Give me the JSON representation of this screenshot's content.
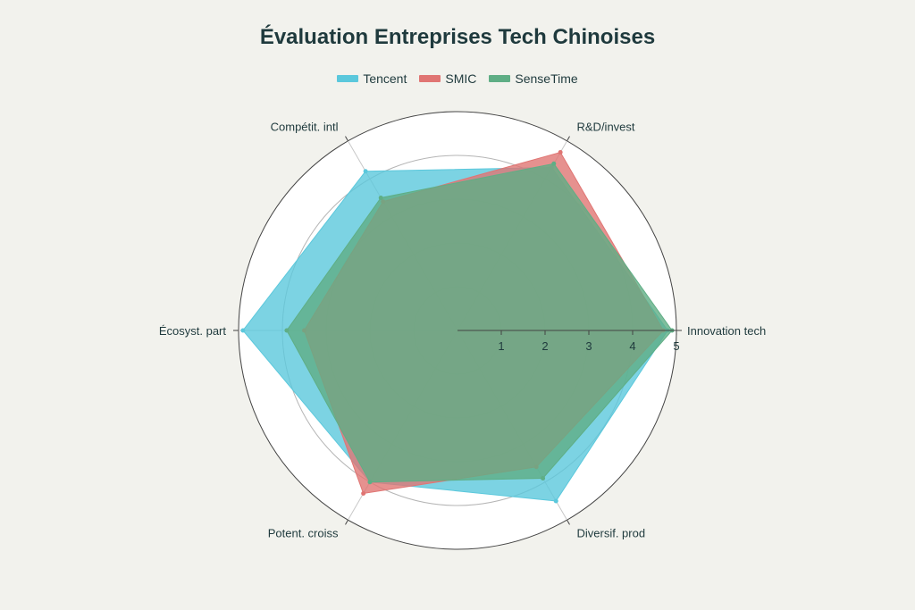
{
  "colors": {
    "background": "#f2f2ed",
    "plot_background": "#ffffff",
    "grid": "#9a9a9a",
    "text": "#1f3a3d"
  },
  "chart_data": {
    "type": "radar",
    "title": "Évaluation Entreprises Tech Chinoises",
    "axes": [
      "Innovation tech",
      "R&D/invest",
      "Compétit. intl",
      "Écosyst. part",
      "Potent. croiss",
      "Diversif. prod"
    ],
    "radial_range": [
      0,
      5
    ],
    "radial_ticks": [
      "1",
      "2",
      "3",
      "4",
      "5"
    ],
    "grid": true,
    "legend_position": "top-center",
    "series": [
      {
        "name": "Tencent",
        "color": "#5bc8dc",
        "values": [
          4.8,
          4.3,
          4.2,
          4.9,
          4.0,
          4.5
        ]
      },
      {
        "name": "SMIC",
        "color": "#e07573",
        "values": [
          4.7,
          4.7,
          3.4,
          3.5,
          4.3,
          3.6
        ]
      },
      {
        "name": "SenseTime",
        "color": "#5fae85",
        "values": [
          4.9,
          4.4,
          3.5,
          3.9,
          4.0,
          3.9
        ]
      }
    ]
  }
}
